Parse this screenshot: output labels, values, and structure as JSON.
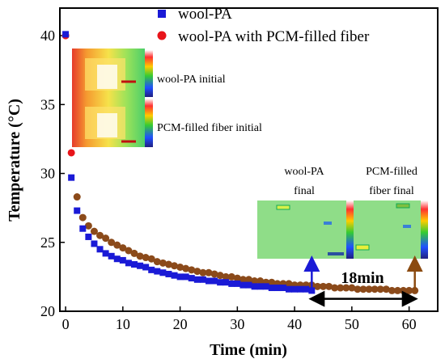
{
  "chart_data": {
    "type": "scatter",
    "xlabel": "Time (min)",
    "ylabel": "Temperature (°C)",
    "xlim": [
      -1,
      65
    ],
    "ylim": [
      20,
      42
    ],
    "xticks": [
      0,
      10,
      20,
      30,
      40,
      50,
      60
    ],
    "yticks": [
      20,
      25,
      30,
      35,
      40
    ],
    "legend_position": "top-right",
    "series": [
      {
        "name": "wool-PA",
        "marker": "square",
        "color": "#1a1ad6",
        "x": [
          0,
          1,
          2,
          3,
          4,
          5,
          6,
          7,
          8,
          9,
          10,
          11,
          12,
          13,
          14,
          15,
          16,
          17,
          18,
          19,
          20,
          21,
          22,
          23,
          24,
          25,
          26,
          27,
          28,
          29,
          30,
          31,
          32,
          33,
          34,
          35,
          36,
          37,
          38,
          39,
          40,
          41,
          42,
          43
        ],
        "y": [
          40.1,
          29.7,
          27.3,
          26.0,
          25.4,
          24.9,
          24.5,
          24.2,
          24.0,
          23.8,
          23.7,
          23.5,
          23.4,
          23.3,
          23.2,
          23.0,
          22.9,
          22.8,
          22.7,
          22.6,
          22.5,
          22.5,
          22.4,
          22.3,
          22.3,
          22.2,
          22.2,
          22.1,
          22.1,
          22.0,
          22.0,
          21.9,
          21.9,
          21.8,
          21.8,
          21.8,
          21.7,
          21.7,
          21.7,
          21.6,
          21.6,
          21.6,
          21.6,
          21.5
        ]
      },
      {
        "name": "wool-PA with PCM-filled fiber",
        "marker": "circle",
        "color": "#e8141a",
        "x": [
          0,
          1,
          2,
          3,
          4,
          5,
          6,
          7,
          8,
          9,
          10,
          11,
          12,
          13,
          14,
          15,
          16,
          17,
          18,
          19,
          20,
          21,
          22,
          23,
          24,
          25,
          26,
          27,
          28,
          29,
          30,
          31,
          32,
          33,
          34,
          35,
          36,
          37,
          38,
          39,
          40,
          41,
          42,
          43,
          44,
          45,
          46,
          47,
          48,
          49,
          50,
          51,
          52,
          53,
          54,
          55,
          56,
          57,
          58,
          59,
          60,
          61
        ],
        "y": [
          40.0,
          31.5,
          28.3,
          26.8,
          26.2,
          25.8,
          25.5,
          25.3,
          25.0,
          24.8,
          24.6,
          24.4,
          24.2,
          24.0,
          23.9,
          23.8,
          23.6,
          23.5,
          23.4,
          23.3,
          23.2,
          23.1,
          23.0,
          22.9,
          22.8,
          22.8,
          22.7,
          22.6,
          22.5,
          22.5,
          22.4,
          22.3,
          22.3,
          22.2,
          22.2,
          22.1,
          22.1,
          22.0,
          22.0,
          22.0,
          21.9,
          21.9,
          21.9,
          21.9,
          21.8,
          21.8,
          21.8,
          21.7,
          21.7,
          21.7,
          21.7,
          21.6,
          21.6,
          21.6,
          21.6,
          21.6,
          21.6,
          21.5,
          21.5,
          21.5,
          21.5,
          21.5
        ]
      }
    ],
    "annotations": {
      "inset_initial_labels": [
        "wool-PA initial",
        "PCM-filled fiber initial"
      ],
      "inset_final_labels": [
        [
          "wool-PA",
          "final"
        ],
        [
          "PCM-filled",
          "fiber final"
        ]
      ],
      "duration_label": "18min",
      "duration_range": [
        43,
        61
      ],
      "blue_arrow_x": 43,
      "brown_arrow_x": 61,
      "blue_arrow_color": "#1a1ad6",
      "brown_arrow_color": "#8b4a10"
    }
  },
  "colors": {
    "axis": "#000000",
    "thermal_red": "#e43a2a",
    "thermal_orange": "#f29a2e",
    "thermal_yellow": "#f3e34a",
    "thermal_green": "#6cd35c",
    "final_green": "#8fdd88"
  }
}
